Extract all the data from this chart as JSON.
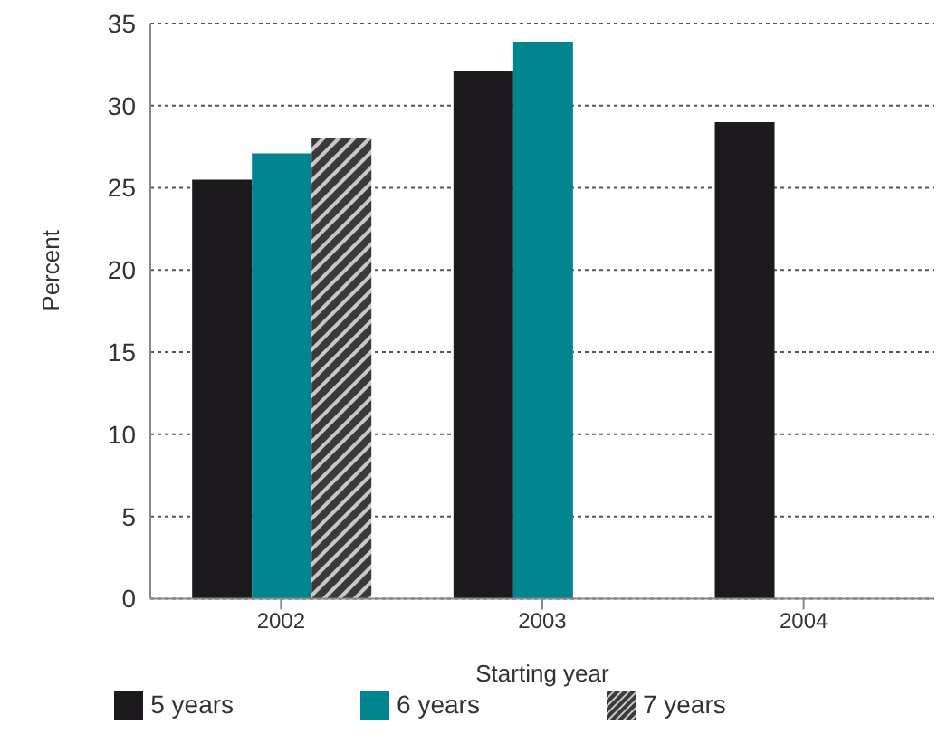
{
  "chart_data": {
    "type": "bar",
    "xlabel": "Starting year",
    "ylabel": "Percent",
    "categories": [
      "2002",
      "2003",
      "2004"
    ],
    "series": [
      {
        "name": "5 years",
        "color": "#1c1a1d",
        "values": [
          25.5,
          32.1,
          29.0
        ]
      },
      {
        "name": "6 years",
        "color": "#008490",
        "values": [
          27.1,
          33.9,
          null
        ]
      },
      {
        "name": "7 years",
        "color": "#3a3a3a",
        "values": [
          28.0,
          null,
          null
        ]
      }
    ],
    "ylim": [
      0,
      35
    ],
    "yticks": [
      0,
      5,
      10,
      15,
      20,
      25,
      30,
      35
    ],
    "grid": "y",
    "legend": "bottom"
  }
}
